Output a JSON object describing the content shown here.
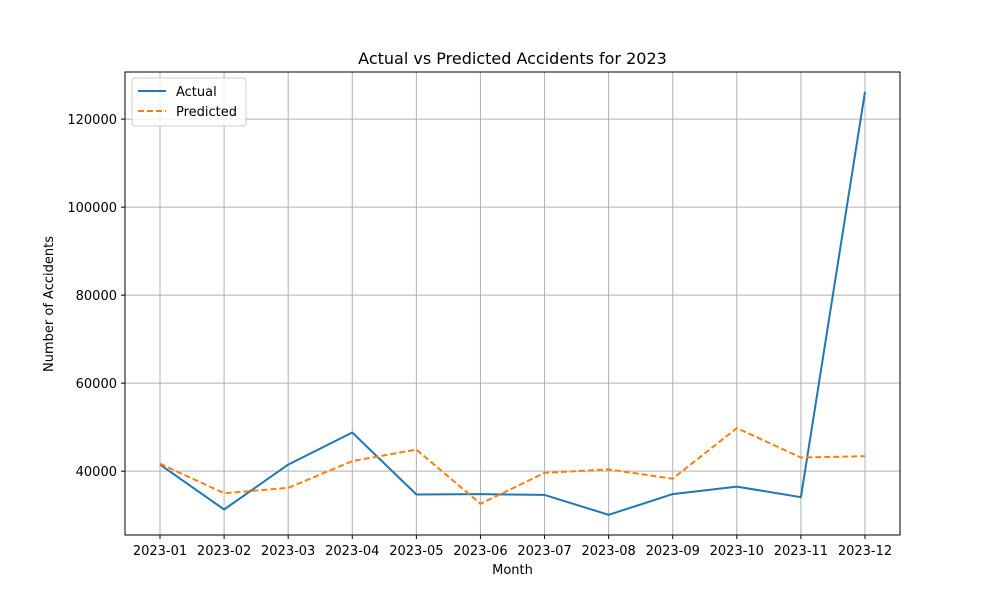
{
  "chart_data": {
    "type": "line",
    "title": "Actual vs Predicted Accidents for 2023",
    "xlabel": "Month",
    "ylabel": "Number of Accidents",
    "categories": [
      "2023-01",
      "2023-02",
      "2023-03",
      "2023-04",
      "2023-05",
      "2023-06",
      "2023-07",
      "2023-08",
      "2023-09",
      "2023-10",
      "2023-11",
      "2023-12"
    ],
    "series": [
      {
        "name": "Actual",
        "color": "#1f77b4",
        "style": "solid",
        "values": [
          41500,
          31300,
          41500,
          48800,
          34700,
          34800,
          34600,
          30100,
          34800,
          36500,
          34100,
          126200
        ]
      },
      {
        "name": "Predicted",
        "color": "#ff7f0e",
        "style": "dashed",
        "values": [
          41700,
          35000,
          36200,
          42300,
          44900,
          32600,
          39600,
          40400,
          38300,
          49800,
          43100,
          43400
        ]
      }
    ],
    "yticks": [
      40000,
      60000,
      80000,
      100000,
      120000
    ],
    "ylim": [
      25500,
      130700
    ],
    "grid": true,
    "legend_position": "top-left"
  }
}
